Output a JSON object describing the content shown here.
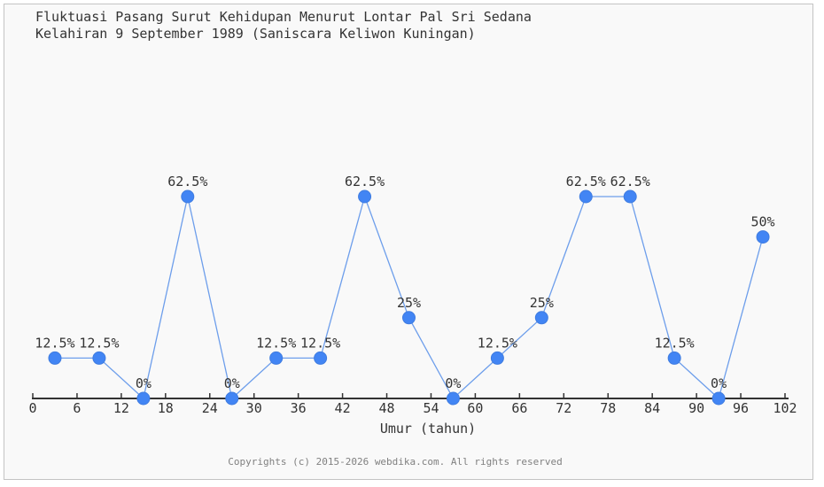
{
  "header": {
    "title_line1": "Fluktuasi Pasang Surut Kehidupan Menurut Lontar Pal Sri Sedana",
    "title_line2": "Kelahiran 9 September 1989 (Saniscara Keliwon Kuningan)"
  },
  "chart_data": {
    "type": "line",
    "title": "Fluktuasi Pasang Surut Kehidupan Menurut Lontar Pal Sri Sedana Kelahiran 9 September 1989 (Saniscara Keliwon Kuningan)",
    "x": [
      3,
      9,
      15,
      21,
      27,
      33,
      39,
      45,
      51,
      57,
      63,
      69,
      75,
      81,
      87,
      93,
      99
    ],
    "values": [
      12.5,
      12.5,
      0,
      62.5,
      0,
      12.5,
      12.5,
      62.5,
      25,
      0,
      12.5,
      25,
      62.5,
      62.5,
      12.5,
      0,
      50
    ],
    "point_labels": [
      "12.5%",
      "12.5%",
      "0%",
      "62.5%",
      "0%",
      "12.5%",
      "12.5%",
      "62.5%",
      "25%",
      "0%",
      "12.5%",
      "25%",
      "62.5%",
      "62.5%",
      "12.5%",
      "0%",
      "50%"
    ],
    "xlabel": "Umur (tahun)",
    "ylabel": "",
    "xticks": [
      0,
      6,
      12,
      18,
      24,
      30,
      36,
      42,
      48,
      54,
      60,
      66,
      72,
      78,
      84,
      90,
      96,
      102
    ],
    "xlim": [
      0,
      102
    ],
    "ylim": [
      0,
      70
    ],
    "grid": false,
    "legend": null,
    "colors": {
      "line": "#6d9eeb",
      "marker": "#4285f4",
      "marker_stroke": "#3f7ce0",
      "axis": "#333333",
      "text": "#333333"
    }
  },
  "footer": {
    "text": "Copyrights (c) 2015-2026 webdika.com. All rights reserved"
  }
}
